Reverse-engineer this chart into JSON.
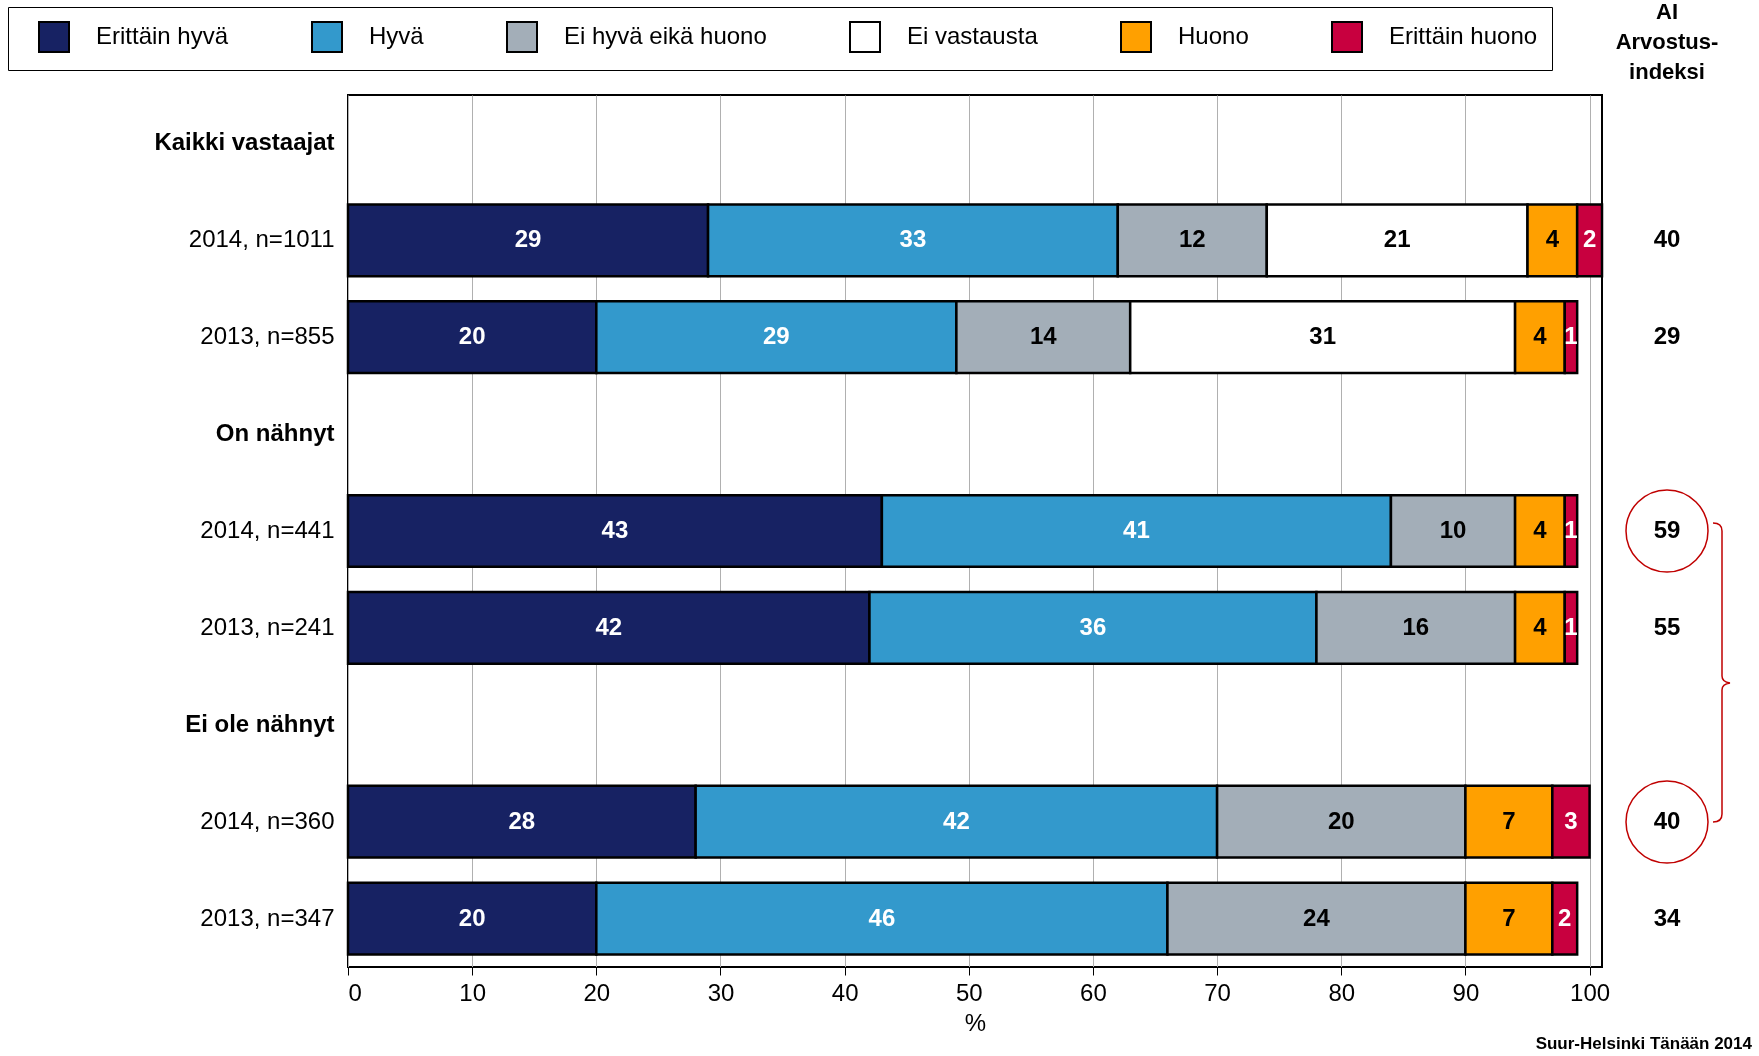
{
  "chart_data": {
    "type": "bar",
    "orientation": "horizontal",
    "stacked": true,
    "data_labels": true,
    "grid": "x",
    "legend": "top",
    "categories": [
      "Kaikki vastaajat",
      "2014, n=1011",
      "2013, n=855",
      "On nähnyt",
      "2014, n=441",
      "2013, n=241",
      "Ei ole nähnyt",
      "2014, n=360",
      "2013, n=347"
    ],
    "series": [
      {
        "name": "Erittäin hyvä",
        "color": "#172263",
        "values": [
          null,
          29,
          20,
          null,
          43,
          42,
          null,
          28,
          20
        ]
      },
      {
        "name": "Hyvä",
        "color": "#3399cc",
        "values": [
          null,
          33,
          29,
          null,
          41,
          36,
          null,
          42,
          46
        ]
      },
      {
        "name": "Ei hyvä eikä huono",
        "color": "#a3aeb8",
        "values": [
          null,
          12,
          14,
          null,
          10,
          16,
          null,
          20,
          24
        ]
      },
      {
        "name": "Ei vastausta",
        "color": "#ffffff",
        "values": [
          null,
          21,
          31,
          null,
          null,
          null,
          null,
          null,
          null
        ]
      },
      {
        "name": "Huono",
        "color": "#ffa000",
        "values": [
          null,
          4,
          4,
          null,
          4,
          4,
          null,
          7,
          7
        ]
      },
      {
        "name": "Erittäin huono",
        "color": "#c8003f",
        "values": [
          null,
          2,
          1,
          null,
          1,
          1,
          null,
          3,
          2
        ]
      }
    ],
    "xlim": [
      0,
      101
    ],
    "xticks": [
      0,
      10,
      20,
      30,
      40,
      50,
      60,
      70,
      80,
      90,
      100
    ],
    "xlabel": "%",
    "annotations": [
      "AI\nArvostus-\nindeksi",
      "40",
      "29",
      "59",
      "55",
      "40",
      "34",
      "Suur-Helsinki Tänään 2014"
    ]
  }
}
